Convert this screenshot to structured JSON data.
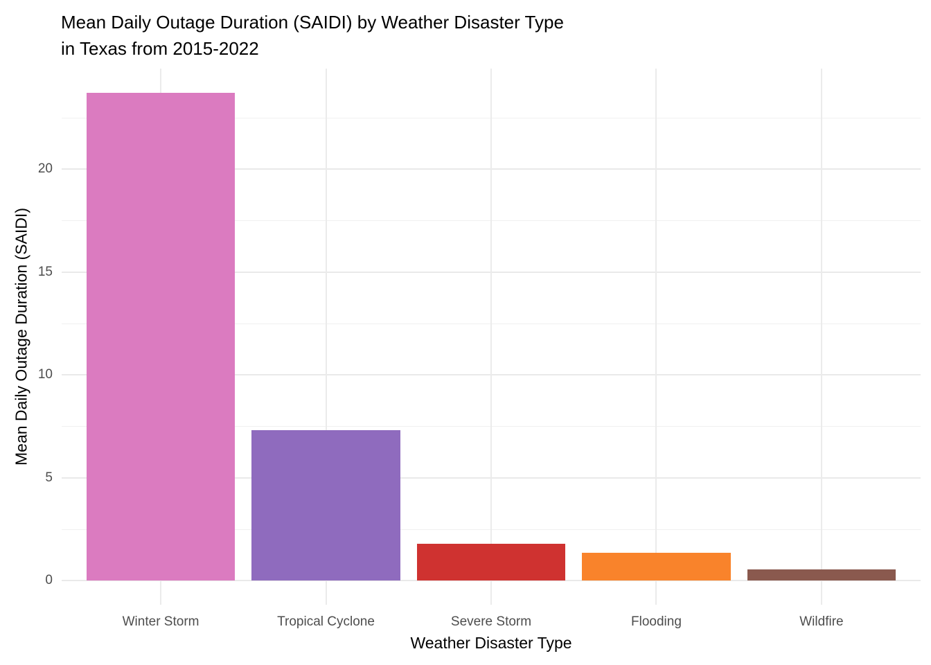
{
  "chart_data": {
    "type": "bar",
    "title_lines": [
      "Mean Daily Outage Duration (SAIDI) by Weather Disaster Type",
      "in Texas from 2015-2022"
    ],
    "xlabel": "Weather Disaster Type",
    "ylabel": "Mean Daily Outage Duration (SAIDI)",
    "categories": [
      "Winter Storm",
      "Tropical Cyclone",
      "Severe Storm",
      "Flooding",
      "Wildfire"
    ],
    "values": [
      23.7,
      7.3,
      1.8,
      1.35,
      0.55
    ],
    "bar_colors": [
      "#DB7BC0",
      "#8F6BBE",
      "#CF3230",
      "#F9832B",
      "#8A594E"
    ],
    "yticks": [
      0,
      5,
      10,
      15,
      20
    ],
    "ytick_labels": [
      "0",
      "5",
      "10",
      "15",
      "20"
    ],
    "minor_gridlines": [
      2.5,
      7.5,
      12.5,
      17.5,
      22.5
    ],
    "ylim": [
      -1.2,
      24.9
    ],
    "bar_width_fraction": 0.9,
    "grid": "horizontal major+minor, vertical major at category centers; no axis lines, no ticks",
    "legend": "none",
    "colors": {
      "background": "#FFFFFF",
      "major_gridline": "#E9E9E9",
      "minor_gridline": "#F0F0F0",
      "tick_label": "#4D4D4D",
      "title_text": "#000000"
    }
  }
}
